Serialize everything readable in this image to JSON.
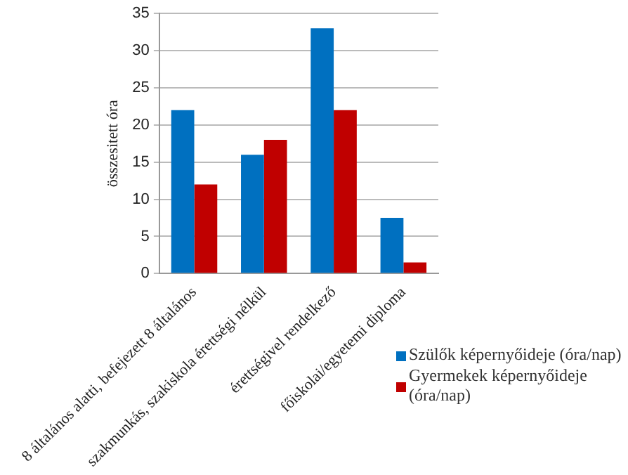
{
  "chart_data": {
    "type": "bar",
    "ylabel": "összesitett óra",
    "categories": [
      "8 általános alatti, befejezett 8 általános",
      "szakmunkás, szakiskola érettségi nélkül",
      "érettségivel rendelkező",
      "főiskolai/egyetemi diploma"
    ],
    "series": [
      {
        "name": "Szülők képernyőideje (óra/nap)",
        "color": "#0070c0",
        "values": [
          22,
          16,
          33,
          7.5
        ]
      },
      {
        "name": "Gyermekek képernyőideje (óra/nap)",
        "color": "#c00000",
        "values": [
          12,
          18,
          22,
          1.5
        ]
      }
    ],
    "ylim": [
      0,
      35
    ],
    "yticks": [
      0,
      5,
      10,
      15,
      20,
      25,
      30,
      35
    ],
    "grid": "y",
    "legend": "right"
  }
}
